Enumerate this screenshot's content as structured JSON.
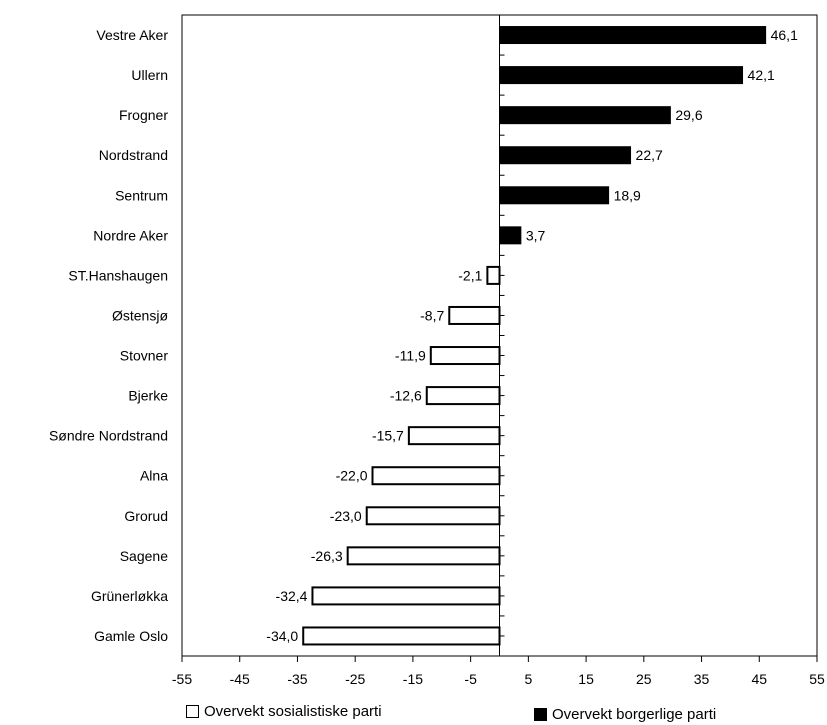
{
  "chart_data": {
    "type": "bar",
    "orientation": "horizontal",
    "categories": [
      "Vestre Aker",
      "Ullern",
      "Frogner",
      "Nordstrand",
      "Sentrum",
      "Nordre Aker",
      "ST.Hanshaugen",
      "Østensjø",
      "Stovner",
      "Bjerke",
      "Søndre Nordstrand",
      "Alna",
      "Grorud",
      "Sagene",
      "Grünerløkka",
      "Gamle Oslo"
    ],
    "values": [
      46.1,
      42.1,
      29.6,
      22.7,
      18.9,
      3.7,
      -2.1,
      -8.7,
      -11.9,
      -12.6,
      -15.7,
      -22.0,
      -23.0,
      -26.3,
      -32.4,
      -34.0
    ],
    "value_labels": [
      "46,1",
      "42,1",
      "29,6",
      "22,7",
      "18,9",
      "3,7",
      "-2,1",
      "-8,7",
      "-11,9",
      "-12,6",
      "-15,7",
      "-22,0",
      "-23,0",
      "-26,3",
      "-32,4",
      "-34,0"
    ],
    "xlim": [
      -55,
      55
    ],
    "x_ticks": [
      "-55",
      "-45",
      "-35",
      "-25",
      "-15",
      "-5",
      "5",
      "15",
      "25",
      "35",
      "45",
      "55"
    ],
    "grid": false,
    "legend_position": "bottom",
    "legend": {
      "negative_label": "Overvekt sosialistiske parti",
      "positive_label": "Overvekt borgerlige parti"
    },
    "colors": {
      "positive_fill": "#000000",
      "negative_fill": "#ffffff",
      "outline": "#000000"
    }
  }
}
